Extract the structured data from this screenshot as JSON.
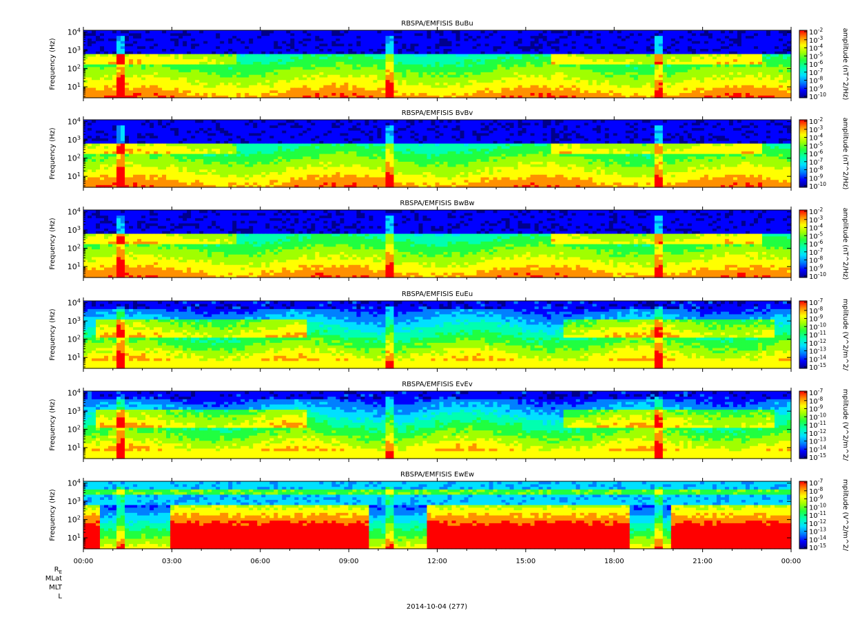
{
  "chart_data": [
    {
      "type": "heatmap",
      "title": "RBSPA/EMFISIS  BuBu",
      "ylabel": "Frequency (Hz)",
      "y_scale": "log",
      "y_ticks": [
        "10^1",
        "10^2",
        "10^3",
        "10^4"
      ],
      "colorbar_label": "amplitude (nT^2/Hz)",
      "colorbar_ticks": [
        "10^-2",
        "10^-3",
        "10^-4",
        "10^-5",
        "10^-6",
        "10^-7",
        "10^-8",
        "10^-9",
        "10^-10"
      ],
      "colorbar_range_exp": [
        -10,
        -2
      ]
    },
    {
      "type": "heatmap",
      "title": "RBSPA/EMFISIS  BvBv",
      "ylabel": "Frequency (Hz)",
      "y_scale": "log",
      "y_ticks": [
        "10^1",
        "10^2",
        "10^3",
        "10^4"
      ],
      "colorbar_label": "amplitude (nT^2/Hz)",
      "colorbar_ticks": [
        "10^-2",
        "10^-3",
        "10^-4",
        "10^-5",
        "10^-6",
        "10^-7",
        "10^-8",
        "10^-9",
        "10^-10"
      ],
      "colorbar_range_exp": [
        -10,
        -2
      ]
    },
    {
      "type": "heatmap",
      "title": "RBSPA/EMFISIS  BwBw",
      "ylabel": "Frequency (Hz)",
      "y_scale": "log",
      "y_ticks": [
        "10^1",
        "10^2",
        "10^3",
        "10^4"
      ],
      "colorbar_label": "amplitude (nT^2/Hz)",
      "colorbar_ticks": [
        "10^-2",
        "10^-3",
        "10^-4",
        "10^-5",
        "10^-6",
        "10^-7",
        "10^-8",
        "10^-9",
        "10^-10"
      ],
      "colorbar_range_exp": [
        -10,
        -2
      ]
    },
    {
      "type": "heatmap",
      "title": "RBSPA/EMFISIS  EuEu",
      "ylabel": "Frequency (Hz)",
      "y_scale": "log",
      "y_ticks": [
        "10^1",
        "10^2",
        "10^3",
        "10^4"
      ],
      "colorbar_label": "mplitude (V^2/m^2/",
      "colorbar_ticks": [
        "10^-7",
        "10^-8",
        "10^-9",
        "10^-10",
        "10^-11",
        "10^-12",
        "10^-13",
        "10^-14",
        "10^-15"
      ],
      "colorbar_range_exp": [
        -15,
        -7
      ]
    },
    {
      "type": "heatmap",
      "title": "RBSPA/EMFISIS  EvEv",
      "ylabel": "Frequency (Hz)",
      "y_scale": "log",
      "y_ticks": [
        "10^1",
        "10^2",
        "10^3",
        "10^4"
      ],
      "colorbar_label": "mplitude (V^2/m^2/",
      "colorbar_ticks": [
        "10^-7",
        "10^-8",
        "10^-9",
        "10^-10",
        "10^-11",
        "10^-12",
        "10^-13",
        "10^-14",
        "10^-15"
      ],
      "colorbar_range_exp": [
        -15,
        -7
      ]
    },
    {
      "type": "heatmap",
      "title": "RBSPA/EMFISIS  EwEw",
      "ylabel": "Frequency (Hz)",
      "y_scale": "log",
      "y_ticks": [
        "10^1",
        "10^2",
        "10^3",
        "10^4"
      ],
      "colorbar_label": "mplitude (V^2/m^2/",
      "colorbar_ticks": [
        "10^-7",
        "10^-8",
        "10^-9",
        "10^-10",
        "10^-11",
        "10^-12",
        "10^-13",
        "10^-14",
        "10^-15"
      ],
      "colorbar_range_exp": [
        -15,
        -7
      ]
    }
  ],
  "x_axis": {
    "ticks": [
      "00:00",
      "03:00",
      "06:00",
      "09:00",
      "12:00",
      "15:00",
      "18:00",
      "21:00",
      "00:00"
    ],
    "extra_rows": [
      "RE",
      "MLat",
      "MLT",
      "L"
    ],
    "date_label": "2014-10-04 (277)"
  },
  "colormap": [
    "#000000",
    "#00008b",
    "#0000ff",
    "#0080ff",
    "#00e0ff",
    "#00ffb0",
    "#20ff40",
    "#a0ff00",
    "#ffff00",
    "#ff9000",
    "#ff0000"
  ]
}
